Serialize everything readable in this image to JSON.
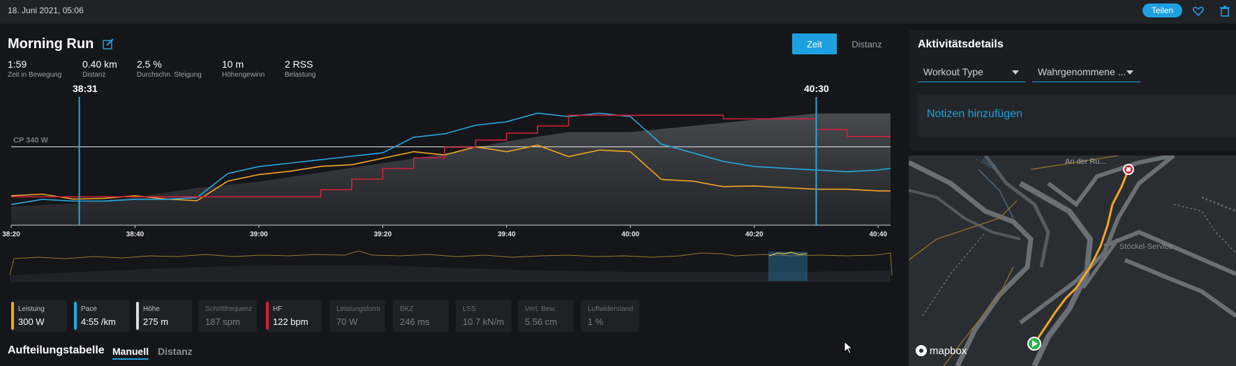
{
  "header": {
    "date": "18. Juni 2021, 05:06",
    "share_label": "Teilen",
    "icons": [
      "heart-icon",
      "trash-icon",
      "edit-icon"
    ]
  },
  "activity": {
    "title": "Morning Run"
  },
  "view_toggle": {
    "time_label": "Zeit",
    "distance_label": "Distanz",
    "active": "Zeit"
  },
  "stats": [
    {
      "value": "1:59",
      "label": "Zeit in Bewegung"
    },
    {
      "value": "0.40 km",
      "label": "Distanz"
    },
    {
      "value": "2.5 %",
      "label": "Durchschn. Steigung"
    },
    {
      "value": "10 m",
      "label": "Höhengewinn"
    },
    {
      "value": "2 RSS",
      "label": "Belastung"
    }
  ],
  "selection": {
    "start": "38:31",
    "end": "40:30"
  },
  "colors": {
    "accent": "#1ea0e0",
    "power": "#f5a623",
    "pace": "#29a8e0",
    "elevation": "#dcdcdc",
    "heart_rate": "#d0213a"
  },
  "chart_data": {
    "type": "line",
    "x_ticks": [
      "38:20",
      "38:40",
      "39:00",
      "39:20",
      "39:40",
      "40:00",
      "40:20",
      "40:40"
    ],
    "x_range_seconds": [
      2300,
      2442
    ],
    "reference_line": {
      "label": "CP 340 W",
      "value": 340
    },
    "series": [
      {
        "name": "Leistung",
        "unit": "W",
        "y_range": [
          100,
          480
        ],
        "x": [
          2300,
          2305,
          2310,
          2315,
          2320,
          2325,
          2330,
          2335,
          2340,
          2345,
          2350,
          2355,
          2360,
          2365,
          2370,
          2375,
          2380,
          2385,
          2390,
          2395,
          2400,
          2405,
          2410,
          2415,
          2420,
          2425,
          2430,
          2435,
          2440,
          2442
        ],
        "values": [
          190,
          195,
          180,
          182,
          190,
          180,
          175,
          235,
          255,
          265,
          280,
          285,
          305,
          325,
          315,
          340,
          325,
          345,
          310,
          330,
          325,
          240,
          235,
          218,
          220,
          215,
          210,
          210,
          205,
          205
        ]
      },
      {
        "name": "Pace",
        "unit": "min/km",
        "y_range": [
          130,
          490
        ],
        "x": [
          2300,
          2305,
          2310,
          2315,
          2320,
          2325,
          2330,
          2335,
          2340,
          2345,
          2350,
          2355,
          2360,
          2365,
          2370,
          2375,
          2380,
          2385,
          2390,
          2395,
          2400,
          2405,
          2410,
          2415,
          2420,
          2425,
          2430,
          2435,
          2440,
          2442
        ],
        "values": [
          190,
          205,
          200,
          200,
          205,
          205,
          210,
          280,
          300,
          310,
          320,
          330,
          340,
          385,
          395,
          420,
          430,
          455,
          445,
          455,
          445,
          365,
          340,
          315,
          300,
          295,
          290,
          285,
          290,
          295
        ]
      },
      {
        "name": "HF",
        "unit": "bpm",
        "y_range": [
          100,
          135
        ],
        "x": [
          2300,
          2305,
          2310,
          2315,
          2320,
          2325,
          2330,
          2335,
          2340,
          2345,
          2350,
          2355,
          2360,
          2365,
          2370,
          2375,
          2380,
          2385,
          2390,
          2395,
          2400,
          2405,
          2410,
          2415,
          2420,
          2425,
          2430,
          2435,
          2440,
          2442
        ],
        "values": [
          108,
          108,
          108,
          108,
          108,
          108,
          108,
          108,
          108,
          108,
          110,
          113,
          116,
          119,
          122,
          124,
          126,
          128,
          131,
          131,
          131,
          131,
          131,
          130,
          130,
          130,
          127,
          125,
          125,
          125
        ]
      },
      {
        "name": "Höhe",
        "unit": "m",
        "y_range": [
          250,
          290
        ],
        "x": [
          2300,
          2310,
          2320,
          2330,
          2340,
          2350,
          2360,
          2370,
          2380,
          2390,
          2400,
          2410,
          2420,
          2430,
          2442
        ],
        "values": [
          256,
          257,
          259,
          262,
          264,
          267,
          270,
          273,
          277,
          280,
          280,
          282,
          284,
          286,
          286
        ]
      }
    ]
  },
  "metrics": [
    {
      "label": "Leistung",
      "value": "300 W",
      "color": "#f5a623",
      "active": true
    },
    {
      "label": "Pace",
      "value": "4:55 /km",
      "color": "#29a8e0",
      "active": true
    },
    {
      "label": "Höhe",
      "value": "275 m",
      "color": "#dcdcdc",
      "active": true
    },
    {
      "label": "Schrittfrequenz",
      "value": "187 spm",
      "color": "",
      "active": false
    },
    {
      "label": "HF",
      "value": "122 bpm",
      "color": "#d0213a",
      "active": true
    },
    {
      "label": "Leistungsform",
      "value": "70 W",
      "color": "",
      "active": false
    },
    {
      "label": "BKZ",
      "value": "246 ms",
      "color": "",
      "active": false
    },
    {
      "label": "LSS",
      "value": "10.7 kN/m",
      "color": "",
      "active": false
    },
    {
      "label": "Vert. Bew.",
      "value": "5.56 cm",
      "color": "",
      "active": false
    },
    {
      "label": "Luftwiderstand",
      "value": "1 %",
      "color": "",
      "active": false
    }
  ],
  "splits": {
    "title": "Aufteilungstabelle",
    "tabs": [
      "Manuell",
      "Distanz"
    ],
    "active": "Manuell"
  },
  "details": {
    "title": "Aktivitätsdetails",
    "workout_type": "Workout Type",
    "perceived": "Wahrgenommene ...",
    "notes_label": "Notizen hinzufügen"
  },
  "map": {
    "labels": [
      "An der Ru...",
      "Stöckel-Service",
      "...bach"
    ],
    "attribution": "mapbox"
  }
}
